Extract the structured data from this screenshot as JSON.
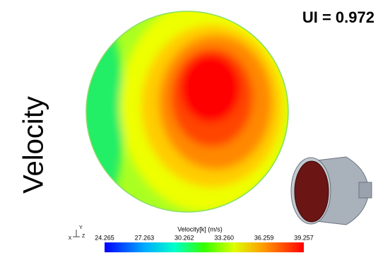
{
  "header": {
    "uniformity": "UI = 0.972",
    "side_label": "Velocity"
  },
  "colorbar": {
    "title": "Velocity[k] (m/s)",
    "ticks": [
      "24.265",
      "27.263",
      "30.262",
      "33.260",
      "36.259",
      "39.257"
    ]
  },
  "triad": {
    "x": "X",
    "y": "Y",
    "z": "Z"
  }
}
